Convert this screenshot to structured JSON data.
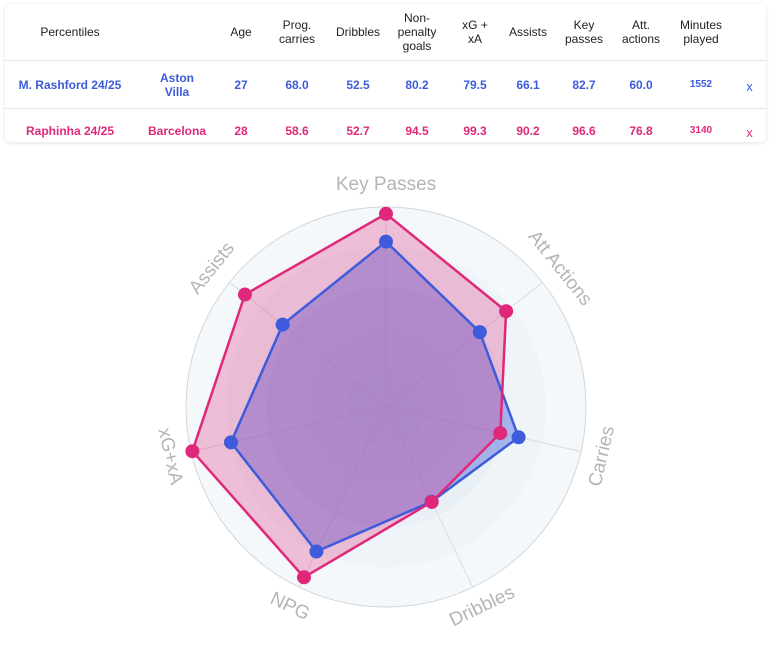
{
  "table": {
    "headers": [
      "Percentiles",
      "",
      "Age",
      "Prog. carries",
      "Dribbles",
      "Non-penalty goals",
      "xG + xA",
      "Assists",
      "Key passes",
      "Att. actions",
      "Minutes played",
      ""
    ],
    "header_lines": {
      "prog_carries": [
        "Prog.",
        "carries"
      ],
      "npg": [
        "Non-",
        "penalty",
        "goals"
      ],
      "xgxa": [
        "xG +",
        "xA"
      ],
      "key_passes": [
        "Key",
        "passes"
      ],
      "att_actions": [
        "Att.",
        "actions"
      ],
      "minutes": [
        "Minutes",
        "played"
      ]
    },
    "rows": [
      {
        "player": "M. Rashford 24/25",
        "team_lines": [
          "Aston",
          "Villa"
        ],
        "age": "27",
        "prog_carries": "68.0",
        "dribbles": "52.5",
        "npg": "80.2",
        "xgxa": "79.5",
        "assists": "66.1",
        "key_passes": "82.7",
        "att_actions": "60.0",
        "minutes": "1552",
        "remove": "x",
        "color": "#3d5bdb"
      },
      {
        "player": "Raphinha 24/25",
        "team_lines": [
          "Barcelona"
        ],
        "age": "28",
        "prog_carries": "58.6",
        "dribbles": "52.7",
        "npg": "94.5",
        "xgxa": "99.3",
        "assists": "90.2",
        "key_passes": "96.6",
        "att_actions": "76.8",
        "minutes": "3140",
        "remove": "x",
        "color": "#e0287a"
      }
    ]
  },
  "chart_data": {
    "type": "radar",
    "axes": [
      "Key Passes",
      "Att Actions",
      "Carries",
      "Dribbles",
      "NPG",
      "xG+xA",
      "Assists"
    ],
    "range": [
      0,
      100
    ],
    "series": [
      {
        "name": "M. Rashford 24/25",
        "color": "#3d5bdb",
        "values": [
          82.7,
          60.0,
          68.0,
          52.5,
          80.2,
          79.5,
          66.1
        ]
      },
      {
        "name": "Raphinha 24/25",
        "color": "#e0287a",
        "values": [
          96.6,
          76.8,
          58.6,
          52.7,
          94.5,
          99.3,
          90.2
        ]
      }
    ],
    "grid": true
  }
}
